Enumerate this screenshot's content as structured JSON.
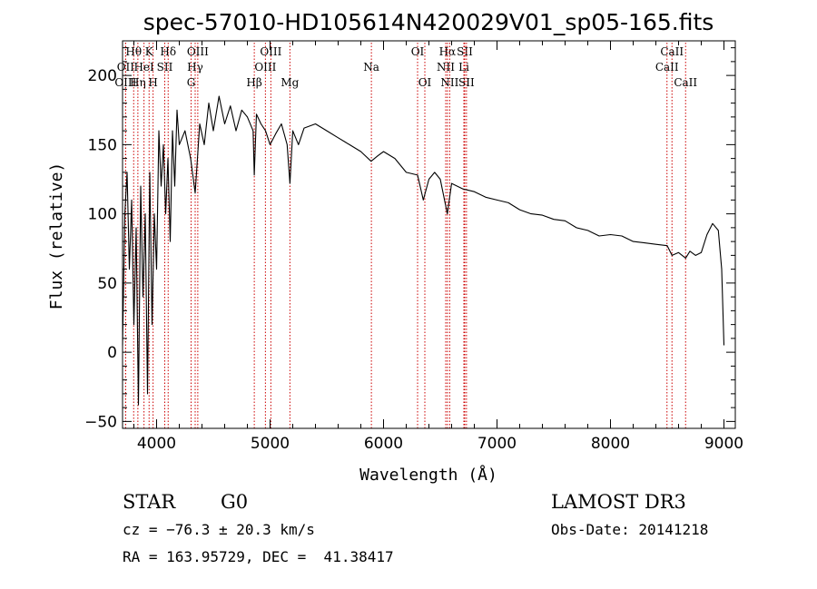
{
  "chart_data": {
    "type": "line",
    "title": "spec-57010-HD105614N420029V01_sp05-165.fits",
    "xlabel": "Wavelength (Å)",
    "ylabel": "Flux (relative)",
    "xlim": [
      3700,
      9100
    ],
    "ylim": [
      -55,
      225
    ],
    "x_ticks": [
      4000,
      5000,
      6000,
      7000,
      8000,
      9000
    ],
    "y_ticks": [
      -50,
      0,
      50,
      100,
      150,
      200
    ],
    "series": [
      {
        "name": "spectrum",
        "x": [
          3700,
          3720,
          3740,
          3760,
          3780,
          3800,
          3820,
          3840,
          3860,
          3880,
          3900,
          3920,
          3940,
          3960,
          3980,
          4000,
          4020,
          4040,
          4060,
          4080,
          4100,
          4120,
          4140,
          4160,
          4180,
          4200,
          4250,
          4300,
          4340,
          4380,
          4420,
          4460,
          4500,
          4550,
          4600,
          4650,
          4700,
          4750,
          4800,
          4850,
          4861,
          4880,
          4920,
          4960,
          5000,
          5050,
          5100,
          5150,
          5175,
          5200,
          5250,
          5300,
          5400,
          5500,
          5600,
          5700,
          5800,
          5890,
          5950,
          6000,
          6100,
          6200,
          6300,
          6350,
          6400,
          6450,
          6500,
          6562,
          6600,
          6700,
          6800,
          6900,
          7000,
          7100,
          7200,
          7300,
          7400,
          7500,
          7600,
          7700,
          7800,
          7900,
          8000,
          8100,
          8200,
          8300,
          8400,
          8500,
          8542,
          8600,
          8662,
          8700,
          8750,
          8800,
          8850,
          8900,
          8950,
          8980,
          9000
        ],
        "y": [
          5,
          100,
          130,
          60,
          110,
          20,
          90,
          -38,
          120,
          40,
          100,
          -30,
          130,
          20,
          100,
          60,
          160,
          120,
          150,
          100,
          140,
          80,
          160,
          120,
          175,
          150,
          160,
          140,
          115,
          165,
          150,
          180,
          160,
          185,
          165,
          178,
          160,
          175,
          170,
          160,
          128,
          172,
          165,
          160,
          150,
          158,
          165,
          150,
          122,
          160,
          150,
          162,
          165,
          160,
          155,
          150,
          145,
          138,
          142,
          145,
          140,
          130,
          128,
          110,
          125,
          130,
          125,
          100,
          122,
          118,
          116,
          112,
          110,
          108,
          103,
          100,
          99,
          96,
          95,
          90,
          88,
          84,
          85,
          84,
          80,
          79,
          78,
          77,
          70,
          72,
          68,
          73,
          70,
          72,
          85,
          93,
          88,
          60,
          5
        ]
      }
    ],
    "line_markers": [
      {
        "label": "Hθ",
        "x": 3798,
        "row": 1
      },
      {
        "label": "K",
        "x": 3934,
        "row": 1
      },
      {
        "label": "Hδ",
        "x": 4102,
        "row": 1
      },
      {
        "label": "OIII",
        "x": 4363,
        "row": 1
      },
      {
        "label": "OIII",
        "x": 5007,
        "row": 1
      },
      {
        "label": "OI",
        "x": 6300,
        "row": 1
      },
      {
        "label": "Hα",
        "x": 6563,
        "row": 1
      },
      {
        "label": "SII",
        "x": 6716,
        "row": 1
      },
      {
        "label": "CaII",
        "x": 8542,
        "row": 1
      },
      {
        "label": "OII",
        "x": 3727,
        "row": 2
      },
      {
        "label": "HeI",
        "x": 3889,
        "row": 2
      },
      {
        "label": "SII",
        "x": 4072,
        "row": 2
      },
      {
        "label": "Hγ",
        "x": 4340,
        "row": 2
      },
      {
        "label": "OIII",
        "x": 4959,
        "row": 2
      },
      {
        "label": "Na",
        "x": 5893,
        "row": 2
      },
      {
        "label": "NII",
        "x": 6548,
        "row": 2
      },
      {
        "label": "Li",
        "x": 6708,
        "row": 2
      },
      {
        "label": "CaII",
        "x": 8498,
        "row": 2
      },
      {
        "label": "OIII",
        "x": 3727,
        "row": 3
      },
      {
        "label": "Hη",
        "x": 3835,
        "row": 3
      },
      {
        "label": "H",
        "x": 3969,
        "row": 3
      },
      {
        "label": "G",
        "x": 4304,
        "row": 3
      },
      {
        "label": "Hβ",
        "x": 4861,
        "row": 3
      },
      {
        "label": "Mg",
        "x": 5175,
        "row": 3
      },
      {
        "label": "OI",
        "x": 6364,
        "row": 3
      },
      {
        "label": "NII",
        "x": 6583,
        "row": 3
      },
      {
        "label": "SII",
        "x": 6731,
        "row": 3
      },
      {
        "label": "CaII",
        "x": 8662,
        "row": 3
      }
    ]
  },
  "info": {
    "object_type": "STAR",
    "subclass": "G0",
    "survey": "LAMOST DR3",
    "cz": "cz = −76.3 ± 20.3 km/s",
    "obs_date": "Obs-Date: 20141218",
    "coords": "RA = 163.95729, DEC =  41.38417"
  },
  "colors": {
    "axis": "#000000",
    "spectrum": "#000000",
    "marker_line": "#cc0000"
  }
}
